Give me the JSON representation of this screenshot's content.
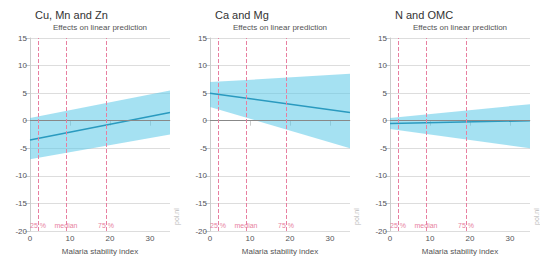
{
  "chart_data": [
    {
      "type": "line",
      "title": "Cu, Mn and Zn",
      "subtitle": "Effects on linear prediction",
      "x": [
        0,
        35
      ],
      "series": [
        {
          "type": "band",
          "color": "#5bc8e8",
          "lower": [
            -7.0,
            -2.5
          ],
          "upper": [
            0.5,
            5.5
          ]
        },
        {
          "type": "line",
          "color": "#2a9abf",
          "values": [
            -3.5,
            1.5
          ]
        }
      ],
      "annotations": [
        {
          "type": "hline",
          "y": 0,
          "color": "#888888"
        },
        {
          "type": "vline",
          "x": 2,
          "label": "25 %",
          "color": "#e87fa0"
        },
        {
          "type": "vline",
          "x": 9,
          "label": "median",
          "color": "#e87fa0"
        },
        {
          "type": "vline",
          "x": 19,
          "label": "75 %",
          "color": "#e87fa0"
        },
        {
          "type": "side_text",
          "text": "pol.nl"
        }
      ],
      "xlabel": "Malaria stability index",
      "xlim": [
        0,
        35
      ],
      "xticks": [
        0,
        10,
        20,
        30
      ],
      "ylim": [
        -20,
        15
      ],
      "yticks": [
        -20,
        -15,
        -10,
        -5,
        0,
        5,
        10,
        15
      ],
      "grid": true
    },
    {
      "type": "line",
      "title": "Ca and Mg",
      "subtitle": "Effects on linear prediction",
      "x": [
        0,
        35
      ],
      "series": [
        {
          "type": "band",
          "color": "#5bc8e8",
          "lower": [
            2.5,
            -5.0
          ],
          "upper": [
            7.0,
            8.5
          ]
        },
        {
          "type": "line",
          "color": "#2a9abf",
          "values": [
            5.0,
            1.5
          ]
        }
      ],
      "annotations": [
        {
          "type": "hline",
          "y": 0,
          "color": "#888888"
        },
        {
          "type": "vline",
          "x": 2,
          "label": "25 %",
          "color": "#e87fa0"
        },
        {
          "type": "vline",
          "x": 9,
          "label": "median",
          "color": "#e87fa0"
        },
        {
          "type": "vline",
          "x": 19,
          "label": "75 %",
          "color": "#e87fa0"
        },
        {
          "type": "side_text",
          "text": "pol.nl"
        }
      ],
      "xlabel": "Malaria stability index",
      "xlim": [
        0,
        35
      ],
      "xticks": [
        0,
        10,
        20,
        30
      ],
      "ylim": [
        -20,
        15
      ],
      "yticks": [
        -20,
        -15,
        -10,
        -5,
        0,
        5,
        10,
        15
      ],
      "grid": true
    },
    {
      "type": "line",
      "title": "N and OMC",
      "subtitle": "Effects on linear prediction",
      "x": [
        0,
        35
      ],
      "series": [
        {
          "type": "band",
          "color": "#5bc8e8",
          "lower": [
            -1.5,
            -5.0
          ],
          "upper": [
            0.5,
            3.0
          ]
        },
        {
          "type": "line",
          "color": "#2a9abf",
          "values": [
            -0.5,
            0.0
          ]
        }
      ],
      "annotations": [
        {
          "type": "hline",
          "y": 0,
          "color": "#888888"
        },
        {
          "type": "vline",
          "x": 2,
          "label": "25 %",
          "color": "#e87fa0"
        },
        {
          "type": "vline",
          "x": 9,
          "label": "median",
          "color": "#e87fa0"
        },
        {
          "type": "vline",
          "x": 19,
          "label": "75 %",
          "color": "#e87fa0"
        },
        {
          "type": "side_text",
          "text": "pol.nl"
        }
      ],
      "xlabel": "Malaria stability index",
      "xlim": [
        0,
        35
      ],
      "xticks": [
        0,
        10,
        20,
        30
      ],
      "ylim": [
        -20,
        15
      ],
      "yticks": [
        -20,
        -15,
        -10,
        -5,
        0,
        5,
        10,
        15
      ],
      "grid": true
    }
  ]
}
